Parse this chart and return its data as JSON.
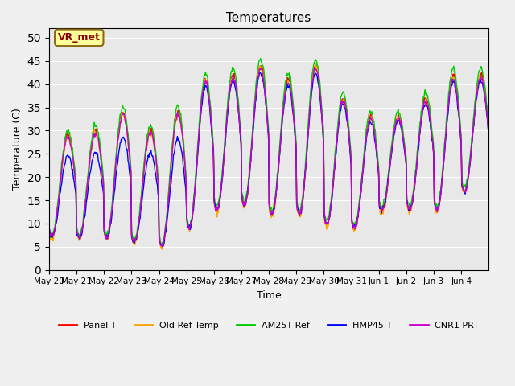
{
  "title": "Temperatures",
  "xlabel": "Time",
  "ylabel": "Temperature (C)",
  "ylim": [
    0,
    52
  ],
  "yticks": [
    0,
    5,
    10,
    15,
    20,
    25,
    30,
    35,
    40,
    45,
    50
  ],
  "x_labels": [
    "May 20",
    "May 21",
    "May 22",
    "May 23",
    "May 24",
    "May 25",
    "May 26",
    "May 27",
    "May 28",
    "May 29",
    "May 30",
    "May 31",
    "Jun 1",
    "Jun 2",
    "Jun 3",
    "Jun 4"
  ],
  "annotation_text": "VR_met",
  "annotation_color": "#8B0000",
  "annotation_bg": "#FFFF99",
  "bg_color": "#E8E8E8",
  "fig_color": "#F0F0F0",
  "line_colors": {
    "Panel T": "#FF0000",
    "Old Ref Temp": "#FFA500",
    "AM25T Ref": "#00CC00",
    "HMP45 T": "#0000FF",
    "CNR1 PRT": "#CC00CC"
  },
  "legend_labels": [
    "Panel T",
    "Old Ref Temp",
    "AM25T Ref",
    "HMP45 T",
    "CNR1 PRT"
  ],
  "day_mins": [
    7,
    7,
    7,
    6,
    5,
    9,
    13,
    14,
    12,
    12,
    10,
    9,
    13,
    13,
    13,
    17
  ],
  "day_maxs": [
    29,
    30,
    34,
    30,
    34,
    41,
    42,
    44,
    41,
    44,
    37,
    33,
    33,
    37,
    42,
    42
  ]
}
